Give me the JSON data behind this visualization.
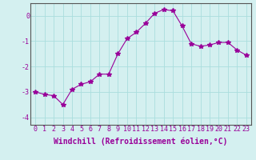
{
  "x": [
    0,
    1,
    2,
    3,
    4,
    5,
    6,
    7,
    8,
    9,
    10,
    11,
    12,
    13,
    14,
    15,
    16,
    17,
    18,
    19,
    20,
    21,
    22,
    23
  ],
  "y": [
    -3.0,
    -3.1,
    -3.15,
    -3.5,
    -2.9,
    -2.7,
    -2.6,
    -2.3,
    -2.3,
    -1.5,
    -0.9,
    -0.65,
    -0.3,
    0.1,
    0.25,
    0.2,
    -0.4,
    -1.1,
    -1.2,
    -1.15,
    -1.05,
    -1.05,
    -1.35,
    -1.55
  ],
  "line_color": "#990099",
  "marker": "*",
  "markersize": 4,
  "bg_color": "#d4f0f0",
  "grid_color": "#aadddd",
  "xlabel": "Windchill (Refroidissement éolien,°C)",
  "xlabel_fontsize": 7,
  "tick_fontsize": 6,
  "yticks": [
    -4,
    -3,
    -2,
    -1,
    0
  ],
  "xticks": [
    0,
    1,
    2,
    3,
    4,
    5,
    6,
    7,
    8,
    9,
    10,
    11,
    12,
    13,
    14,
    15,
    16,
    17,
    18,
    19,
    20,
    21,
    22,
    23
  ],
  "ylim": [
    -4.3,
    0.5
  ],
  "xlim": [
    -0.5,
    23.5
  ]
}
